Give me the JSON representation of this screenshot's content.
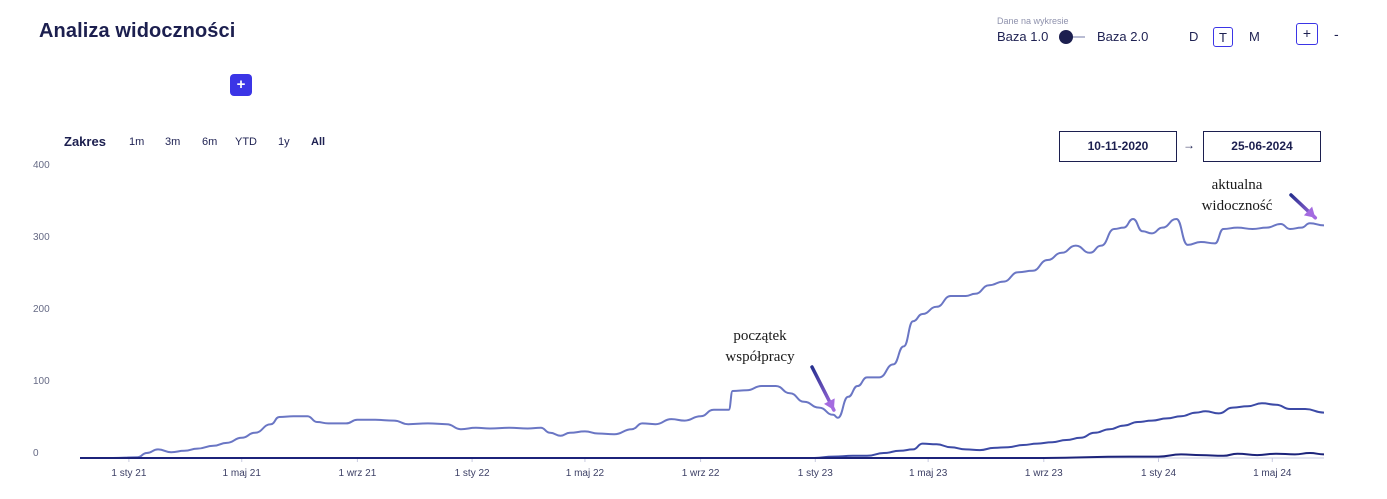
{
  "header": {
    "title": "Analiza widoczności",
    "add_label": "+"
  },
  "base_toggle": {
    "caption": "Dane na wykresie",
    "left_label": "Baza 1.0",
    "right_label": "Baza 2.0",
    "selected": "Baza 1.0"
  },
  "granularity": {
    "options": [
      "D",
      "T",
      "M"
    ],
    "selected": "T"
  },
  "zoom": {
    "in_label": "+",
    "out_label": "-"
  },
  "range": {
    "label": "Zakres",
    "options": [
      "1m",
      "3m",
      "6m",
      "YTD",
      "1y",
      "All"
    ],
    "selected": "All"
  },
  "dates": {
    "from": "10-11-2020",
    "to": "25-06-2024",
    "arrow": "→"
  },
  "colors": {
    "accent": "#3b35e6",
    "series_light": "#6a76c4",
    "series_mid": "#3c4aa6",
    "series_dark": "#1c237a",
    "arrow_dark": "#27308f",
    "arrow_light": "#a46be0"
  },
  "annotations": [
    {
      "lines": [
        "początek",
        "współpracy"
      ],
      "date": "2023-01-25",
      "value": 68
    },
    {
      "lines": [
        "aktualna",
        "widoczność"
      ],
      "date": "2024-06-20",
      "value": 335
    }
  ],
  "chart_data": {
    "type": "line",
    "ylim": [
      0,
      400
    ],
    "yticks": [
      0,
      100,
      200,
      300,
      400
    ],
    "xlim": [
      "2020-11-10",
      "2024-06-25"
    ],
    "xticks": [
      {
        "label": "1 sty 21",
        "date": "2021-01-01"
      },
      {
        "label": "1 maj 21",
        "date": "2021-05-01"
      },
      {
        "label": "1 wrz 21",
        "date": "2021-09-01"
      },
      {
        "label": "1 sty 22",
        "date": "2022-01-01"
      },
      {
        "label": "1 maj 22",
        "date": "2022-05-01"
      },
      {
        "label": "1 wrz 22",
        "date": "2022-09-01"
      },
      {
        "label": "1 sty 23",
        "date": "2023-01-01"
      },
      {
        "label": "1 maj 23",
        "date": "2023-05-01"
      },
      {
        "label": "1 wrz 23",
        "date": "2023-09-01"
      },
      {
        "label": "1 sty 24",
        "date": "2024-01-01"
      },
      {
        "label": "1 maj 24",
        "date": "2024-05-01"
      }
    ],
    "series": [
      {
        "color": "#6a76c4",
        "points": [
          [
            "2020-11-10",
            0
          ],
          [
            "2020-12-15",
            0
          ],
          [
            "2021-01-10",
            1
          ],
          [
            "2021-01-20",
            7
          ],
          [
            "2021-02-01",
            12
          ],
          [
            "2021-02-15",
            8
          ],
          [
            "2021-03-01",
            10
          ],
          [
            "2021-03-15",
            13
          ],
          [
            "2021-04-01",
            17
          ],
          [
            "2021-04-15",
            21
          ],
          [
            "2021-05-01",
            28
          ],
          [
            "2021-05-15",
            35
          ],
          [
            "2021-06-01",
            47
          ],
          [
            "2021-06-10",
            57
          ],
          [
            "2021-06-25",
            58
          ],
          [
            "2021-07-10",
            58
          ],
          [
            "2021-07-20",
            50
          ],
          [
            "2021-08-01",
            48
          ],
          [
            "2021-08-20",
            48
          ],
          [
            "2021-09-01",
            53
          ],
          [
            "2021-09-20",
            53
          ],
          [
            "2021-10-10",
            52
          ],
          [
            "2021-10-25",
            47
          ],
          [
            "2021-11-15",
            48
          ],
          [
            "2021-12-05",
            47
          ],
          [
            "2021-12-20",
            40
          ],
          [
            "2022-01-05",
            42
          ],
          [
            "2022-01-20",
            41
          ],
          [
            "2022-02-10",
            42
          ],
          [
            "2022-03-01",
            41
          ],
          [
            "2022-03-15",
            42
          ],
          [
            "2022-03-25",
            35
          ],
          [
            "2022-04-05",
            31
          ],
          [
            "2022-04-15",
            35
          ],
          [
            "2022-05-01",
            37
          ],
          [
            "2022-05-15",
            34
          ],
          [
            "2022-06-01",
            33
          ],
          [
            "2022-06-20",
            40
          ],
          [
            "2022-07-01",
            48
          ],
          [
            "2022-07-15",
            47
          ],
          [
            "2022-08-01",
            54
          ],
          [
            "2022-08-15",
            52
          ],
          [
            "2022-09-01",
            58
          ],
          [
            "2022-09-15",
            67
          ],
          [
            "2022-10-01",
            67
          ],
          [
            "2022-10-05",
            93
          ],
          [
            "2022-10-20",
            94
          ],
          [
            "2022-11-05",
            100
          ],
          [
            "2022-11-20",
            100
          ],
          [
            "2022-12-05",
            90
          ],
          [
            "2022-12-20",
            78
          ],
          [
            "2023-01-05",
            70
          ],
          [
            "2023-01-20",
            60
          ],
          [
            "2023-01-25",
            56
          ],
          [
            "2023-02-05",
            85
          ],
          [
            "2023-02-15",
            100
          ],
          [
            "2023-02-25",
            112
          ],
          [
            "2023-03-10",
            112
          ],
          [
            "2023-03-25",
            130
          ],
          [
            "2023-04-05",
            155
          ],
          [
            "2023-04-15",
            190
          ],
          [
            "2023-04-25",
            200
          ],
          [
            "2023-05-10",
            210
          ],
          [
            "2023-05-25",
            225
          ],
          [
            "2023-06-10",
            225
          ],
          [
            "2023-06-20",
            228
          ],
          [
            "2023-07-05",
            240
          ],
          [
            "2023-07-20",
            245
          ],
          [
            "2023-08-05",
            258
          ],
          [
            "2023-08-20",
            260
          ],
          [
            "2023-09-05",
            275
          ],
          [
            "2023-09-20",
            285
          ],
          [
            "2023-10-05",
            295
          ],
          [
            "2023-10-20",
            285
          ],
          [
            "2023-11-01",
            295
          ],
          [
            "2023-11-15",
            318
          ],
          [
            "2023-11-25",
            320
          ],
          [
            "2023-12-05",
            332
          ],
          [
            "2023-12-15",
            315
          ],
          [
            "2023-12-25",
            312
          ],
          [
            "2024-01-05",
            320
          ],
          [
            "2024-01-20",
            332
          ],
          [
            "2024-02-01",
            296
          ],
          [
            "2024-02-15",
            300
          ],
          [
            "2024-03-01",
            298
          ],
          [
            "2024-03-10",
            318
          ],
          [
            "2024-03-25",
            320
          ],
          [
            "2024-04-10",
            318
          ],
          [
            "2024-04-25",
            320
          ],
          [
            "2024-05-10",
            325
          ],
          [
            "2024-05-20",
            318
          ],
          [
            "2024-06-01",
            320
          ],
          [
            "2024-06-10",
            326
          ],
          [
            "2024-06-25",
            323
          ]
        ]
      },
      {
        "color": "#3c4aa6",
        "points": [
          [
            "2020-11-10",
            0
          ],
          [
            "2022-12-31",
            0
          ],
          [
            "2023-01-20",
            2
          ],
          [
            "2023-02-10",
            3
          ],
          [
            "2023-02-25",
            3
          ],
          [
            "2023-03-15",
            7
          ],
          [
            "2023-04-01",
            10
          ],
          [
            "2023-04-15",
            12
          ],
          [
            "2023-04-25",
            20
          ],
          [
            "2023-05-10",
            19
          ],
          [
            "2023-05-25",
            15
          ],
          [
            "2023-06-10",
            12
          ],
          [
            "2023-06-25",
            11
          ],
          [
            "2023-07-10",
            14
          ],
          [
            "2023-07-25",
            15
          ],
          [
            "2023-08-10",
            18
          ],
          [
            "2023-08-25",
            20
          ],
          [
            "2023-09-10",
            22
          ],
          [
            "2023-09-25",
            25
          ],
          [
            "2023-10-10",
            28
          ],
          [
            "2023-10-25",
            35
          ],
          [
            "2023-11-10",
            40
          ],
          [
            "2023-11-25",
            45
          ],
          [
            "2023-12-10",
            50
          ],
          [
            "2023-12-25",
            52
          ],
          [
            "2024-01-10",
            55
          ],
          [
            "2024-01-25",
            58
          ],
          [
            "2024-02-10",
            63
          ],
          [
            "2024-02-20",
            65
          ],
          [
            "2024-03-05",
            62
          ],
          [
            "2024-03-20",
            70
          ],
          [
            "2024-04-05",
            72
          ],
          [
            "2024-04-20",
            76
          ],
          [
            "2024-05-05",
            74
          ],
          [
            "2024-05-20",
            68
          ],
          [
            "2024-06-05",
            68
          ],
          [
            "2024-06-25",
            63
          ]
        ]
      },
      {
        "color": "#1c237a",
        "points": [
          [
            "2020-11-10",
            0
          ],
          [
            "2023-09-01",
            0
          ],
          [
            "2023-12-01",
            2
          ],
          [
            "2024-01-01",
            2
          ],
          [
            "2024-01-25",
            5
          ],
          [
            "2024-02-15",
            4
          ],
          [
            "2024-03-10",
            3
          ],
          [
            "2024-03-25",
            6
          ],
          [
            "2024-04-15",
            4
          ],
          [
            "2024-05-05",
            6
          ],
          [
            "2024-05-25",
            5
          ],
          [
            "2024-06-10",
            7
          ],
          [
            "2024-06-25",
            5
          ]
        ]
      }
    ]
  }
}
